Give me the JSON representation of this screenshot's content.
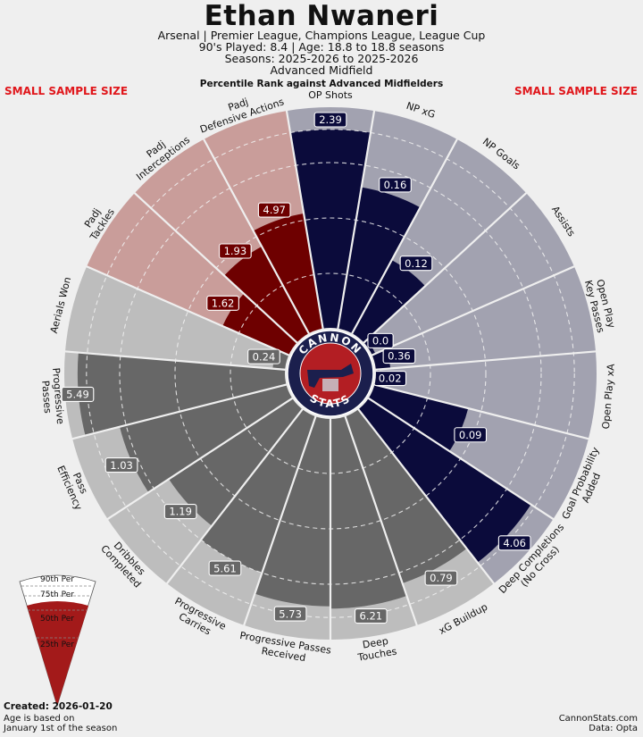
{
  "header": {
    "title": "Ethan Nwaneri",
    "line1": "Arsenal | Premier League, Champions League, League Cup",
    "line2": "90's Played: 8.4 | Age: 18.8 to 18.8 seasons",
    "line3": "Seasons: 2025-2026 to 2025-2026",
    "line4": "Advanced Midfield"
  },
  "warning": {
    "left": "SMALL SAMPLE SIZE",
    "right": "SMALL SAMPLE SIZE"
  },
  "logo": {
    "top_text": "CANNON",
    "bottom_text": "STATS"
  },
  "legend": {
    "labels": [
      "90th Per",
      "75th Per",
      "50th Per",
      "25th Per"
    ]
  },
  "footer": {
    "created": "Created: 2026-01-20",
    "age_note_1": "Age is based on",
    "age_note_2": "January 1st of the season",
    "site": "CannonStats.com",
    "data_source": "Data: Opta"
  },
  "colors": {
    "attacking": "#0b0b3b",
    "attacking_bg": "#a2a2b0",
    "defending": "#6e0000",
    "defending_bg": "#c99d9a",
    "possession": "#676767",
    "possession_bg": "#bdbdbd",
    "background": "#efefef",
    "legend_red": "#a31a1a"
  },
  "chart_data": {
    "type": "radial-bar (pizza)",
    "title": "Percentile Rank against Advanced Midfielders",
    "range": [
      0,
      100
    ],
    "reference_rings": [
      25,
      50,
      75,
      90
    ],
    "categories": [
      {
        "label": "OP Shots",
        "value": "2.39",
        "percentile": 90,
        "group": "attacking"
      },
      {
        "label": "NP xG",
        "value": "0.16",
        "percentile": 65,
        "group": "attacking"
      },
      {
        "label": "NP Goals",
        "value": "0.12",
        "percentile": 38,
        "group": "attacking"
      },
      {
        "label": "Assists",
        "value": "0.0",
        "percentile": 2,
        "group": "attacking"
      },
      {
        "label": "Open Play Key Passes",
        "value": "0.36",
        "percentile": 7,
        "group": "attacking"
      },
      {
        "label": "Open Play xA",
        "value": "0.02",
        "percentile": 2,
        "group": "attacking"
      },
      {
        "label": "Goal Probability Added",
        "value": "0.09",
        "percentile": 44,
        "group": "attacking"
      },
      {
        "label": "Deep Completions (No Cross)",
        "value": "4.06",
        "percentile": 88,
        "group": "attacking"
      },
      {
        "label": "xG Buildup",
        "value": "0.79",
        "percentile": 80,
        "group": "possession"
      },
      {
        "label": "Deep Touches",
        "value": "6.21",
        "percentile": 86,
        "group": "possession"
      },
      {
        "label": "Progressive Passes Received",
        "value": "5.73",
        "percentile": 85,
        "group": "possession"
      },
      {
        "label": "Progressive Carries",
        "value": "5.61",
        "percentile": 75,
        "group": "possession"
      },
      {
        "label": "Dribbles Completed",
        "value": "1.19",
        "percentile": 67,
        "group": "possession"
      },
      {
        "label": "Pass Efficiency",
        "value": "1.03",
        "percentile": 78,
        "group": "possession"
      },
      {
        "label": "Progressive Passes",
        "value": "5.49",
        "percentile": 94,
        "group": "possession"
      },
      {
        "label": "Aerials Won",
        "value": "0.24",
        "percentile": 6,
        "group": "possession"
      },
      {
        "label": "Padj Tackles",
        "value": "1.62",
        "percentile": 33,
        "group": "defending"
      },
      {
        "label": "Padj Interceptions",
        "value": "1.93",
        "percentile": 45,
        "group": "defending"
      },
      {
        "label": "Padj Defensive Actions",
        "value": "4.97",
        "percentile": 53,
        "group": "defending"
      }
    ]
  }
}
